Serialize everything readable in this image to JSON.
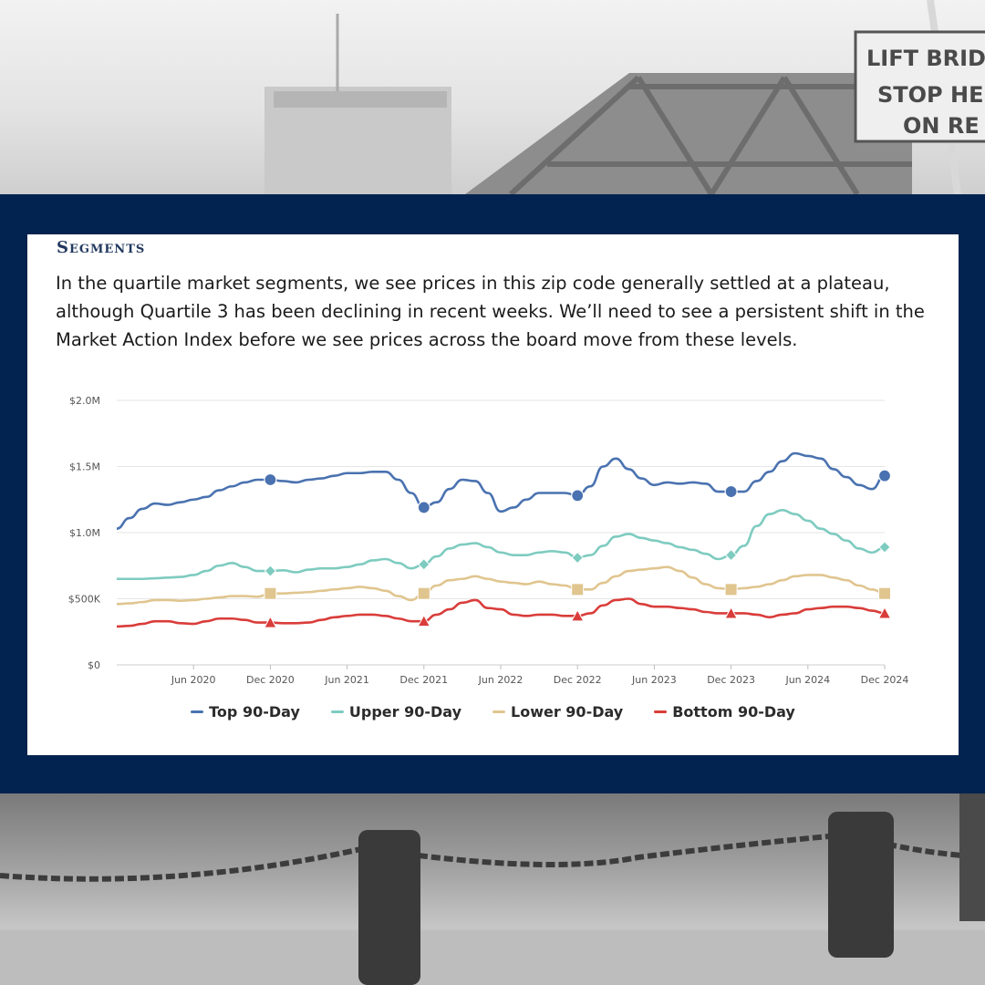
{
  "photo_top": {
    "sign_text_1": "LIFT BRID",
    "sign_text_2": "STOP HE",
    "sign_text_3": "ON RE"
  },
  "section": {
    "heading": "Segments",
    "paragraph": "In the quartile market segments, we see prices in this zip code generally settled at a plateau, although Quartile 3 has been declining in recent weeks. We’ll need to see a persistent shift in the Market Action Index before we see prices across the board move from these levels."
  },
  "chart_data": {
    "type": "line",
    "ylim": [
      0,
      2000000
    ],
    "y_ticks": [
      {
        "value": 0,
        "label": "$0"
      },
      {
        "value": 500000,
        "label": "$500K"
      },
      {
        "value": 1000000,
        "label": "$1.0M"
      },
      {
        "value": 1500000,
        "label": "$1.5M"
      },
      {
        "value": 2000000,
        "label": "$2.0M"
      }
    ],
    "x_range": [
      "2019-12",
      "2024-12"
    ],
    "x_ticks": [
      {
        "date": "2020-06",
        "label": "Jun 2020"
      },
      {
        "date": "2020-12",
        "label": "Dec 2020"
      },
      {
        "date": "2021-06",
        "label": "Jun 2021"
      },
      {
        "date": "2021-12",
        "label": "Dec 2021"
      },
      {
        "date": "2022-06",
        "label": "Jun 2022"
      },
      {
        "date": "2022-12",
        "label": "Dec 2022"
      },
      {
        "date": "2023-06",
        "label": "Jun 2023"
      },
      {
        "date": "2023-12",
        "label": "Dec 2023"
      },
      {
        "date": "2024-06",
        "label": "Jun 2024"
      },
      {
        "date": "2024-12",
        "label": "Dec 2024"
      }
    ],
    "x": [
      "2019-12",
      "2020-01",
      "2020-02",
      "2020-03",
      "2020-04",
      "2020-05",
      "2020-06",
      "2020-07",
      "2020-08",
      "2020-09",
      "2020-10",
      "2020-11",
      "2020-12",
      "2021-01",
      "2021-02",
      "2021-03",
      "2021-04",
      "2021-05",
      "2021-06",
      "2021-07",
      "2021-08",
      "2021-09",
      "2021-10",
      "2021-11",
      "2021-12",
      "2022-01",
      "2022-02",
      "2022-03",
      "2022-04",
      "2022-05",
      "2022-06",
      "2022-07",
      "2022-08",
      "2022-09",
      "2022-10",
      "2022-11",
      "2022-12",
      "2023-01",
      "2023-02",
      "2023-03",
      "2023-04",
      "2023-05",
      "2023-06",
      "2023-07",
      "2023-08",
      "2023-09",
      "2023-10",
      "2023-11",
      "2023-12",
      "2024-01",
      "2024-02",
      "2024-03",
      "2024-04",
      "2024-05",
      "2024-06",
      "2024-07",
      "2024-08",
      "2024-09",
      "2024-10",
      "2024-11",
      "2024-12"
    ],
    "marker_x": [
      "2020-12",
      "2021-12",
      "2022-12",
      "2023-12",
      "2024-12"
    ],
    "grid": true,
    "legend_position": "bottom",
    "series": [
      {
        "name": "Top 90-Day",
        "color": "#4a72b0",
        "marker": "circle",
        "values": [
          1030000,
          1110000,
          1180000,
          1220000,
          1210000,
          1230000,
          1250000,
          1270000,
          1320000,
          1350000,
          1380000,
          1400000,
          1400000,
          1390000,
          1380000,
          1400000,
          1410000,
          1430000,
          1450000,
          1450000,
          1460000,
          1460000,
          1400000,
          1300000,
          1190000,
          1230000,
          1330000,
          1400000,
          1390000,
          1300000,
          1160000,
          1190000,
          1250000,
          1300000,
          1300000,
          1300000,
          1280000,
          1350000,
          1500000,
          1560000,
          1480000,
          1410000,
          1360000,
          1380000,
          1370000,
          1380000,
          1370000,
          1310000,
          1310000,
          1310000,
          1390000,
          1460000,
          1540000,
          1600000,
          1580000,
          1560000,
          1480000,
          1420000,
          1360000,
          1330000,
          1430000
        ]
      },
      {
        "name": "Upper 90-Day",
        "color": "#7ecbc0",
        "marker": "diamond",
        "values": [
          650000,
          650000,
          650000,
          655000,
          660000,
          665000,
          680000,
          710000,
          750000,
          770000,
          740000,
          710000,
          710000,
          715000,
          700000,
          720000,
          730000,
          730000,
          740000,
          760000,
          790000,
          800000,
          770000,
          730000,
          760000,
          820000,
          880000,
          910000,
          920000,
          890000,
          850000,
          830000,
          830000,
          850000,
          860000,
          850000,
          810000,
          830000,
          900000,
          970000,
          990000,
          960000,
          940000,
          920000,
          890000,
          870000,
          840000,
          800000,
          830000,
          900000,
          1050000,
          1140000,
          1170000,
          1140000,
          1090000,
          1030000,
          990000,
          940000,
          880000,
          850000,
          890000
        ]
      },
      {
        "name": "Lower 90-Day",
        "color": "#e0c58f",
        "marker": "square",
        "values": [
          460000,
          465000,
          475000,
          490000,
          490000,
          485000,
          490000,
          500000,
          510000,
          520000,
          520000,
          515000,
          540000,
          540000,
          545000,
          550000,
          560000,
          570000,
          580000,
          590000,
          580000,
          560000,
          520000,
          490000,
          540000,
          600000,
          640000,
          650000,
          670000,
          650000,
          630000,
          620000,
          610000,
          630000,
          610000,
          600000,
          570000,
          570000,
          620000,
          670000,
          710000,
          720000,
          730000,
          740000,
          710000,
          660000,
          610000,
          580000,
          570000,
          580000,
          590000,
          610000,
          640000,
          670000,
          680000,
          680000,
          660000,
          640000,
          600000,
          570000,
          540000
        ]
      },
      {
        "name": "Bottom 90-Day",
        "color": "#d93d3a",
        "marker": "triangle",
        "values": [
          290000,
          295000,
          310000,
          330000,
          330000,
          315000,
          310000,
          330000,
          350000,
          350000,
          340000,
          320000,
          320000,
          315000,
          315000,
          320000,
          340000,
          360000,
          370000,
          380000,
          380000,
          370000,
          350000,
          330000,
          330000,
          380000,
          420000,
          470000,
          490000,
          430000,
          420000,
          380000,
          370000,
          380000,
          380000,
          370000,
          370000,
          390000,
          450000,
          490000,
          500000,
          460000,
          440000,
          440000,
          430000,
          420000,
          400000,
          390000,
          390000,
          390000,
          380000,
          360000,
          380000,
          390000,
          420000,
          430000,
          440000,
          440000,
          430000,
          410000,
          390000
        ]
      }
    ]
  }
}
